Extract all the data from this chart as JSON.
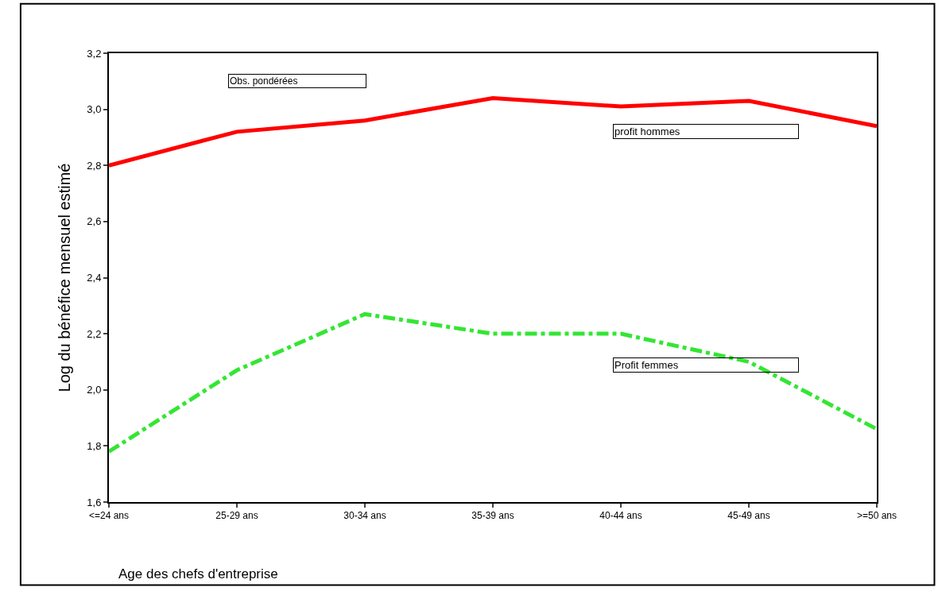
{
  "chart_data": {
    "type": "line",
    "xlabel": "Age des chefs d'entreprise",
    "ylabel": "Log du bénéfice mensuel estimé",
    "categories": [
      "<=24 ans",
      "25-29 ans",
      "30-34 ans",
      "35-39 ans",
      "40-44 ans",
      "45-49 ans",
      ">=50 ans"
    ],
    "series": [
      {
        "name": "profit hommes",
        "color": "#ff0000",
        "line_style": "solid",
        "values": [
          2.8,
          2.92,
          2.96,
          3.04,
          3.01,
          3.03,
          2.94
        ]
      },
      {
        "name": "Profit femmes",
        "color": "#33e633",
        "line_style": "dashed",
        "values": [
          1.78,
          2.07,
          2.27,
          2.2,
          2.2,
          2.1,
          1.86
        ]
      }
    ],
    "ylim": [
      1.6,
      3.2
    ],
    "yticks": [
      {
        "value": 1.6,
        "label": "1,6"
      },
      {
        "value": 1.8,
        "label": "1,8"
      },
      {
        "value": 2.0,
        "label": "2,0"
      },
      {
        "value": 2.2,
        "label": "2,2"
      },
      {
        "value": 2.4,
        "label": "2,4"
      },
      {
        "value": 2.6,
        "label": "2,6"
      },
      {
        "value": 2.8,
        "label": "2,8"
      },
      {
        "value": 3.0,
        "label": "3,0"
      },
      {
        "value": 3.2,
        "label": "3,2"
      }
    ],
    "annotations": [
      "Obs. pondérées"
    ],
    "grid": false,
    "legend": false,
    "marker": "none"
  }
}
